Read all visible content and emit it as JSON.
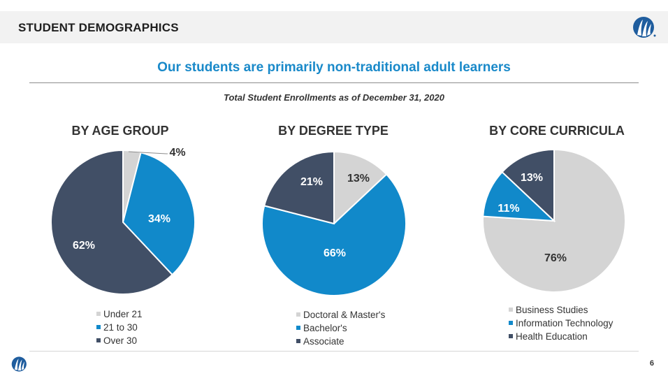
{
  "header": {
    "title": "STUDENT DEMOGRAPHICS"
  },
  "subtitle": "Our students are primarily non-traditional adult learners",
  "caption": "Total Student Enrollments as of December 31, 2020",
  "colors": {
    "light_gray": "#d4d4d4",
    "blue": "#1189ca",
    "navy": "#414f66",
    "accent": "#1989c9"
  },
  "chart_data": [
    {
      "type": "pie",
      "title": "BY AGE GROUP",
      "categories": [
        "Under 21",
        "21 to 30",
        "Over 30"
      ],
      "values": [
        4,
        34,
        62
      ],
      "labels": [
        "4%",
        "34%",
        "62%"
      ],
      "colors": [
        "#d4d4d4",
        "#1189ca",
        "#414f66"
      ],
      "legend_position": "bottom"
    },
    {
      "type": "pie",
      "title": "BY DEGREE TYPE",
      "categories": [
        "Doctoral & Master's",
        "Bachelor's",
        "Associate"
      ],
      "values": [
        13,
        66,
        21
      ],
      "labels": [
        "13%",
        "66%",
        "21%"
      ],
      "colors": [
        "#d4d4d4",
        "#1189ca",
        "#414f66"
      ],
      "legend_position": "bottom"
    },
    {
      "type": "pie",
      "title": "BY CORE CURRICULA",
      "categories": [
        "Business Studies",
        "Information Technology",
        "Health Education"
      ],
      "values": [
        76,
        11,
        13
      ],
      "labels": [
        "76%",
        "11%",
        "13%"
      ],
      "colors": [
        "#d4d4d4",
        "#1189ca",
        "#414f66"
      ],
      "legend_position": "bottom"
    }
  ],
  "footer": {
    "page_number": "6"
  },
  "icons": {
    "logo": "wave-logo-icon"
  }
}
